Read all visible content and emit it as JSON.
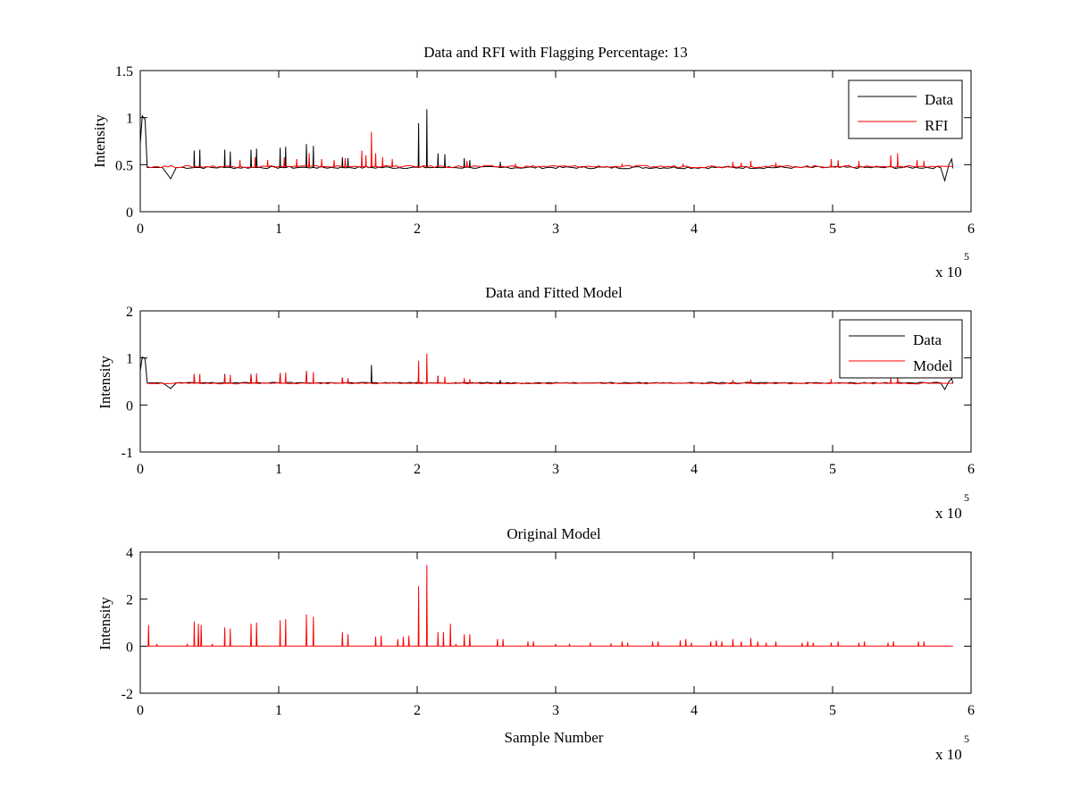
{
  "chart_data": [
    {
      "type": "line",
      "title": "Data and RFI with Flagging Percentage: 13",
      "xlabel": "",
      "ylabel": "Intensity",
      "xlim": [
        0,
        600000
      ],
      "ylim": [
        0,
        1.5
      ],
      "xticks": [
        0,
        1,
        2,
        3,
        4,
        5,
        6
      ],
      "yticks": [
        "0",
        "0.5",
        "1",
        "1.5"
      ],
      "x_multiplier": "x 10",
      "x_exponent": "5",
      "grid": false,
      "legend_position": "top-right",
      "baseline": 0.47,
      "x_end": 587000,
      "series": [
        {
          "name": "Data",
          "color": "#000000",
          "baseline": 0.47,
          "spikes": [
            {
              "x": 39000,
              "y": 0.65
            },
            {
              "x": 43000,
              "y": 0.66
            },
            {
              "x": 61000,
              "y": 0.66
            },
            {
              "x": 65000,
              "y": 0.64
            },
            {
              "x": 80000,
              "y": 0.66
            },
            {
              "x": 84000,
              "y": 0.67
            },
            {
              "x": 101000,
              "y": 0.68
            },
            {
              "x": 105000,
              "y": 0.69
            },
            {
              "x": 120000,
              "y": 0.72
            },
            {
              "x": 125000,
              "y": 0.7
            },
            {
              "x": 146000,
              "y": 0.58
            },
            {
              "x": 150000,
              "y": 0.57
            },
            {
              "x": 167000,
              "y": 0.62
            },
            {
              "x": 201000,
              "y": 0.94
            },
            {
              "x": 207000,
              "y": 1.09
            },
            {
              "x": 215000,
              "y": 0.62
            },
            {
              "x": 220000,
              "y": 0.61
            },
            {
              "x": 234000,
              "y": 0.57
            },
            {
              "x": 238000,
              "y": 0.55
            },
            {
              "x": 260000,
              "y": 0.53
            }
          ]
        },
        {
          "name": "RFI",
          "color": "#ff0000",
          "baseline": 0.48,
          "spikes": [
            {
              "x": 72000,
              "y": 0.55
            },
            {
              "x": 83000,
              "y": 0.58
            },
            {
              "x": 92000,
              "y": 0.55
            },
            {
              "x": 104000,
              "y": 0.58
            },
            {
              "x": 113000,
              "y": 0.56
            },
            {
              "x": 122000,
              "y": 0.62
            },
            {
              "x": 131000,
              "y": 0.56
            },
            {
              "x": 140000,
              "y": 0.55
            },
            {
              "x": 148000,
              "y": 0.57
            },
            {
              "x": 160000,
              "y": 0.65
            },
            {
              "x": 163000,
              "y": 0.6
            },
            {
              "x": 167000,
              "y": 0.85
            },
            {
              "x": 170000,
              "y": 0.62
            },
            {
              "x": 175000,
              "y": 0.58
            },
            {
              "x": 182000,
              "y": 0.56
            },
            {
              "x": 236000,
              "y": 0.54
            },
            {
              "x": 271000,
              "y": 0.51
            },
            {
              "x": 348000,
              "y": 0.51
            },
            {
              "x": 392000,
              "y": 0.51
            },
            {
              "x": 428000,
              "y": 0.53
            },
            {
              "x": 434000,
              "y": 0.52
            },
            {
              "x": 441000,
              "y": 0.54
            },
            {
              "x": 459000,
              "y": 0.52
            },
            {
              "x": 499000,
              "y": 0.56
            },
            {
              "x": 504000,
              "y": 0.55
            },
            {
              "x": 519000,
              "y": 0.54
            },
            {
              "x": 542000,
              "y": 0.6
            },
            {
              "x": 547000,
              "y": 0.62
            },
            {
              "x": 561000,
              "y": 0.55
            },
            {
              "x": 566000,
              "y": 0.54
            }
          ]
        }
      ]
    },
    {
      "type": "line",
      "title": "Data and Fitted Model",
      "xlabel": "",
      "ylabel": "Intensity",
      "xlim": [
        0,
        600000
      ],
      "ylim": [
        -1,
        2
      ],
      "xticks": [
        0,
        1,
        2,
        3,
        4,
        5,
        6
      ],
      "yticks": [
        "-1",
        "0",
        "1",
        "2"
      ],
      "x_multiplier": "x 10",
      "x_exponent": "5",
      "grid": false,
      "legend_position": "top-right",
      "baseline": 0.47,
      "x_end": 587000,
      "series": [
        {
          "name": "Data",
          "color": "#000000",
          "baseline": 0.47,
          "spikes": [
            {
              "x": 39000,
              "y": 0.65
            },
            {
              "x": 61000,
              "y": 0.66
            },
            {
              "x": 80000,
              "y": 0.66
            },
            {
              "x": 101000,
              "y": 0.68
            },
            {
              "x": 120000,
              "y": 0.72
            },
            {
              "x": 146000,
              "y": 0.58
            },
            {
              "x": 167000,
              "y": 0.85
            },
            {
              "x": 215000,
              "y": 0.62
            },
            {
              "x": 260000,
              "y": 0.53
            }
          ]
        },
        {
          "name": "Model",
          "color": "#ff0000",
          "baseline": 0.46,
          "spikes": [
            {
              "x": 39000,
              "y": 0.66
            },
            {
              "x": 43000,
              "y": 0.66
            },
            {
              "x": 61000,
              "y": 0.64
            },
            {
              "x": 65000,
              "y": 0.64
            },
            {
              "x": 80000,
              "y": 0.65
            },
            {
              "x": 84000,
              "y": 0.67
            },
            {
              "x": 101000,
              "y": 0.68
            },
            {
              "x": 105000,
              "y": 0.69
            },
            {
              "x": 120000,
              "y": 0.7
            },
            {
              "x": 125000,
              "y": 0.7
            },
            {
              "x": 146000,
              "y": 0.58
            },
            {
              "x": 150000,
              "y": 0.57
            },
            {
              "x": 201000,
              "y": 0.94
            },
            {
              "x": 207000,
              "y": 1.09
            },
            {
              "x": 215000,
              "y": 0.61
            },
            {
              "x": 220000,
              "y": 0.6
            },
            {
              "x": 234000,
              "y": 0.57
            },
            {
              "x": 238000,
              "y": 0.55
            },
            {
              "x": 428000,
              "y": 0.53
            },
            {
              "x": 441000,
              "y": 0.54
            },
            {
              "x": 499000,
              "y": 0.55
            },
            {
              "x": 542000,
              "y": 0.58
            },
            {
              "x": 547000,
              "y": 0.6
            }
          ]
        }
      ]
    },
    {
      "type": "line",
      "title": "Original Model",
      "xlabel": "Sample Number",
      "ylabel": "Intensity",
      "xlim": [
        0,
        600000
      ],
      "ylim": [
        -2,
        4
      ],
      "xticks": [
        0,
        1,
        2,
        3,
        4,
        5,
        6
      ],
      "yticks": [
        "-2",
        "0",
        "2",
        "4"
      ],
      "x_multiplier": "x 10",
      "x_exponent": "5",
      "grid": false,
      "legend_position": "none",
      "baseline": 0,
      "x_end": 587000,
      "series": [
        {
          "color": "#ff0000",
          "baseline": 0,
          "spikes": [
            {
              "x": 6000,
              "y": 0.9
            },
            {
              "x": 12000,
              "y": 0.1
            },
            {
              "x": 34000,
              "y": 0.1
            },
            {
              "x": 39000,
              "y": 1.05
            },
            {
              "x": 42000,
              "y": 0.95
            },
            {
              "x": 44000,
              "y": 0.9
            },
            {
              "x": 52000,
              "y": 0.1
            },
            {
              "x": 61000,
              "y": 0.8
            },
            {
              "x": 65000,
              "y": 0.75
            },
            {
              "x": 80000,
              "y": 0.95
            },
            {
              "x": 84000,
              "y": 1.0
            },
            {
              "x": 101000,
              "y": 1.1
            },
            {
              "x": 105000,
              "y": 1.15
            },
            {
              "x": 120000,
              "y": 1.35
            },
            {
              "x": 125000,
              "y": 1.25
            },
            {
              "x": 146000,
              "y": 0.6
            },
            {
              "x": 150000,
              "y": 0.5
            },
            {
              "x": 170000,
              "y": 0.4
            },
            {
              "x": 174000,
              "y": 0.45
            },
            {
              "x": 186000,
              "y": 0.3
            },
            {
              "x": 190000,
              "y": 0.4
            },
            {
              "x": 194000,
              "y": 0.45
            },
            {
              "x": 201000,
              "y": 2.55
            },
            {
              "x": 207000,
              "y": 3.45
            },
            {
              "x": 215000,
              "y": 0.6
            },
            {
              "x": 219000,
              "y": 0.6
            },
            {
              "x": 224000,
              "y": 0.95
            },
            {
              "x": 228000,
              "y": 0.1
            },
            {
              "x": 234000,
              "y": 0.5
            },
            {
              "x": 238000,
              "y": 0.5
            },
            {
              "x": 258000,
              "y": 0.3
            },
            {
              "x": 262000,
              "y": 0.3
            },
            {
              "x": 280000,
              "y": 0.2
            },
            {
              "x": 284000,
              "y": 0.2
            },
            {
              "x": 300000,
              "y": 0.1
            },
            {
              "x": 310000,
              "y": 0.1
            },
            {
              "x": 325000,
              "y": 0.15
            },
            {
              "x": 340000,
              "y": 0.12
            },
            {
              "x": 348000,
              "y": 0.2
            },
            {
              "x": 352000,
              "y": 0.15
            },
            {
              "x": 370000,
              "y": 0.2
            },
            {
              "x": 374000,
              "y": 0.2
            },
            {
              "x": 390000,
              "y": 0.25
            },
            {
              "x": 394000,
              "y": 0.3
            },
            {
              "x": 398000,
              "y": 0.15
            },
            {
              "x": 412000,
              "y": 0.2
            },
            {
              "x": 416000,
              "y": 0.25
            },
            {
              "x": 420000,
              "y": 0.2
            },
            {
              "x": 428000,
              "y": 0.3
            },
            {
              "x": 434000,
              "y": 0.2
            },
            {
              "x": 441000,
              "y": 0.35
            },
            {
              "x": 446000,
              "y": 0.2
            },
            {
              "x": 452000,
              "y": 0.15
            },
            {
              "x": 459000,
              "y": 0.2
            },
            {
              "x": 478000,
              "y": 0.15
            },
            {
              "x": 482000,
              "y": 0.2
            },
            {
              "x": 486000,
              "y": 0.15
            },
            {
              "x": 499000,
              "y": 0.15
            },
            {
              "x": 504000,
              "y": 0.2
            },
            {
              "x": 519000,
              "y": 0.15
            },
            {
              "x": 523000,
              "y": 0.2
            },
            {
              "x": 540000,
              "y": 0.15
            },
            {
              "x": 544000,
              "y": 0.2
            },
            {
              "x": 562000,
              "y": 0.2
            },
            {
              "x": 566000,
              "y": 0.2
            }
          ]
        }
      ]
    }
  ]
}
